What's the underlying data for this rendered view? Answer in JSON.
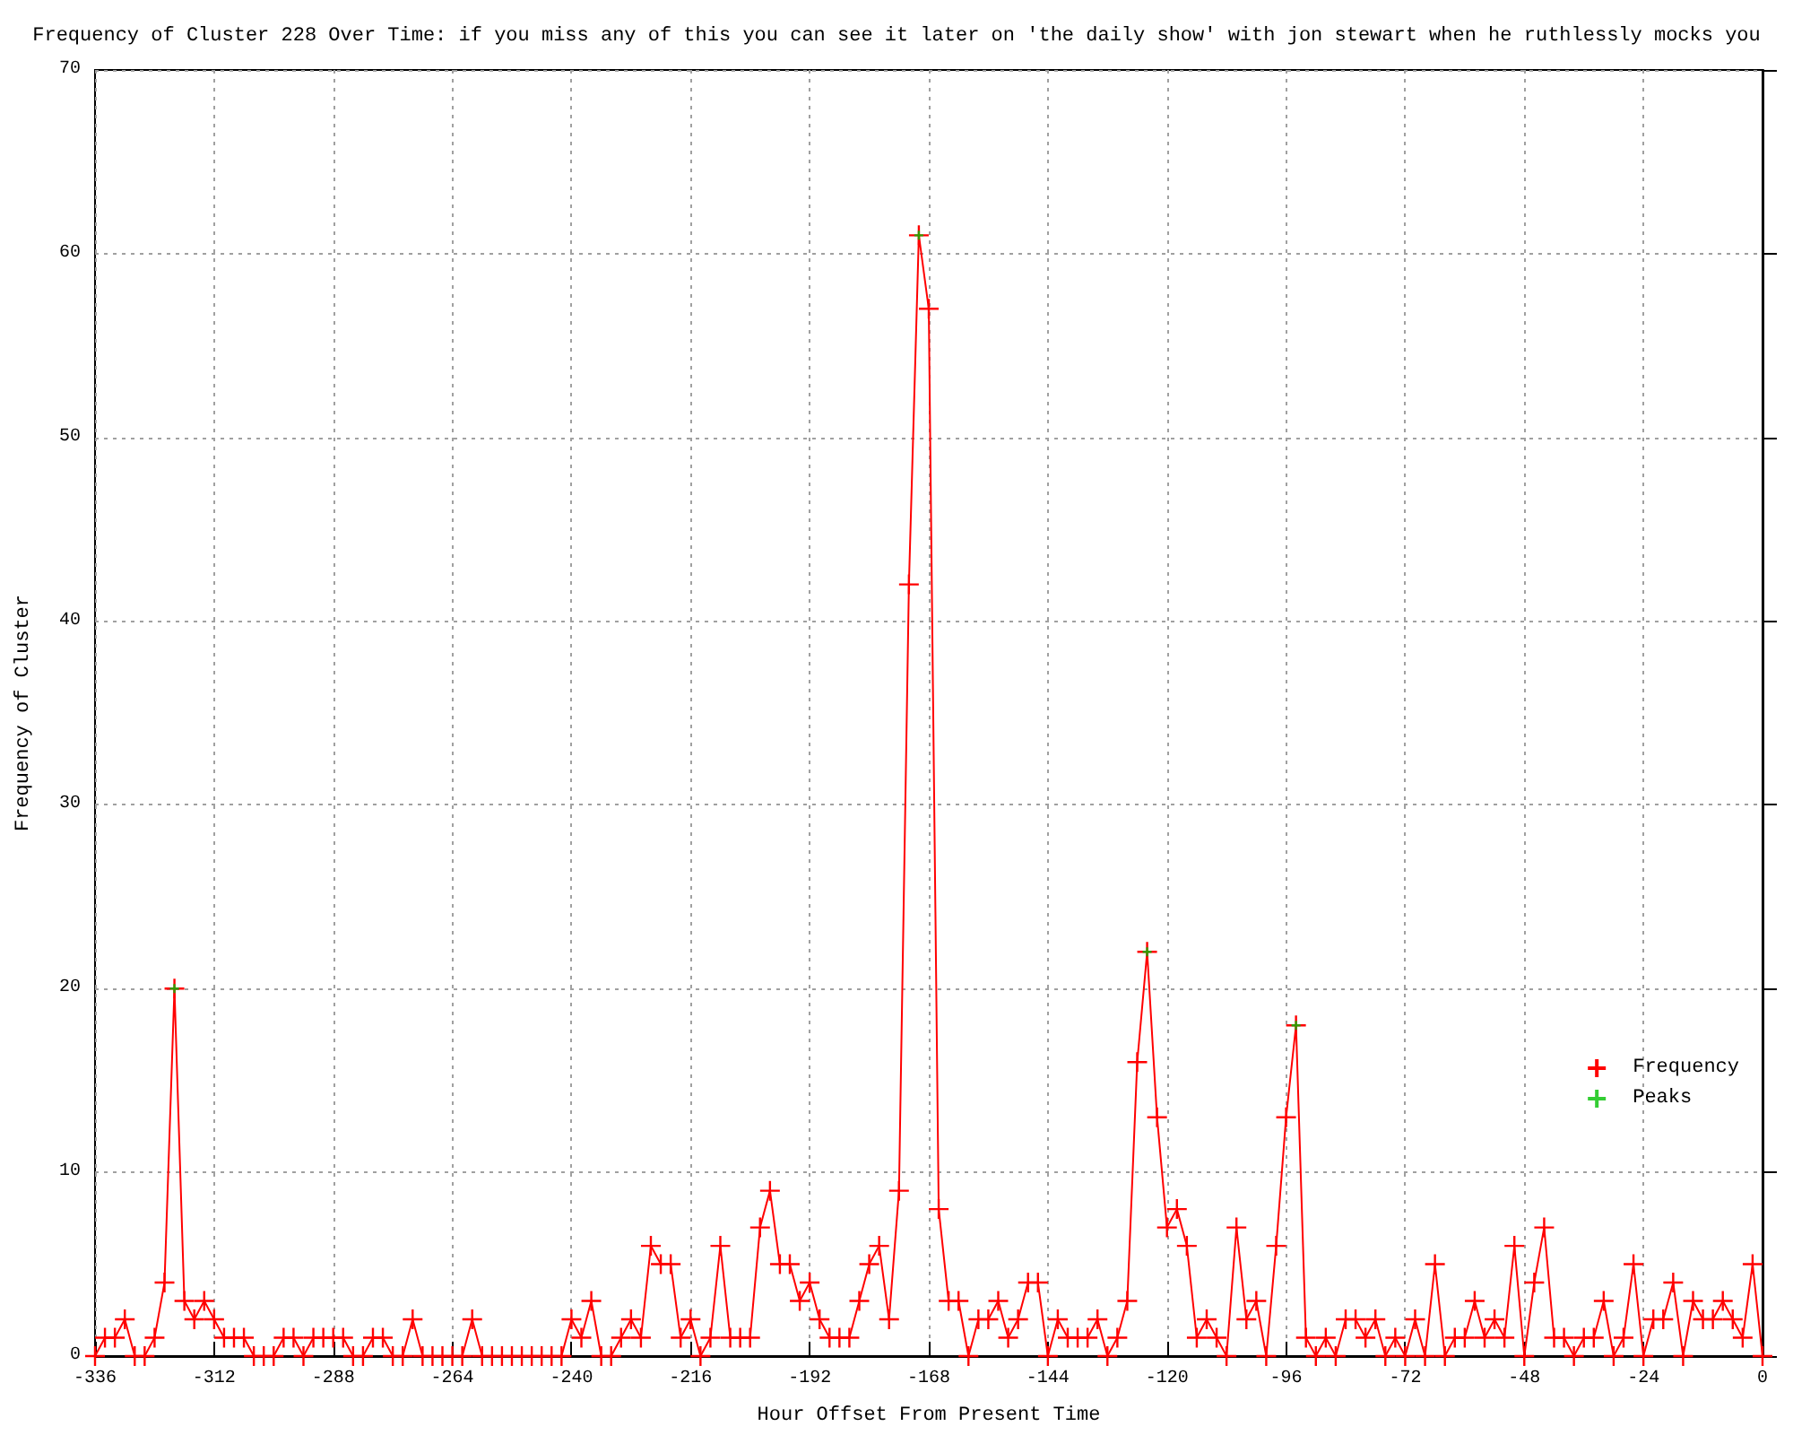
{
  "chart_data": {
    "type": "line",
    "title": "Frequency of Cluster 228 Over Time: if you miss any of this you can see it later on 'the daily show' with jon stewart when he ruthlessly mocks you",
    "xlabel": "Hour Offset From Present Time",
    "ylabel": "Frequency of Cluster",
    "x": [
      -336,
      -334,
      -332,
      -330,
      -328,
      -326,
      -324,
      -322,
      -320,
      -318,
      -316,
      -314,
      -312,
      -310,
      -308,
      -306,
      -304,
      -302,
      -300,
      -298,
      -296,
      -294,
      -292,
      -290,
      -288,
      -286,
      -284,
      -282,
      -280,
      -278,
      -276,
      -274,
      -272,
      -270,
      -268,
      -266,
      -264,
      -262,
      -260,
      -258,
      -256,
      -254,
      -252,
      -250,
      -248,
      -246,
      -244,
      -242,
      -240,
      -238,
      -236,
      -234,
      -232,
      -230,
      -228,
      -226,
      -224,
      -222,
      -220,
      -218,
      -216,
      -214,
      -212,
      -210,
      -208,
      -206,
      -204,
      -202,
      -200,
      -198,
      -196,
      -194,
      -192,
      -190,
      -188,
      -186,
      -184,
      -182,
      -180,
      -178,
      -176,
      -174,
      -172,
      -170,
      -168,
      -166,
      -164,
      -162,
      -160,
      -158,
      -156,
      -154,
      -152,
      -150,
      -148,
      -146,
      -144,
      -142,
      -140,
      -138,
      -136,
      -134,
      -132,
      -130,
      -128,
      -126,
      -124,
      -122,
      -120,
      -118,
      -116,
      -114,
      -112,
      -110,
      -108,
      -106,
      -104,
      -102,
      -100,
      -98,
      -96,
      -94,
      -92,
      -90,
      -88,
      -86,
      -84,
      -82,
      -80,
      -78,
      -76,
      -74,
      -72,
      -70,
      -68,
      -66,
      -64,
      -62,
      -60,
      -58,
      -56,
      -54,
      -52,
      -50,
      -48,
      -46,
      -44,
      -42,
      -40,
      -38,
      -36,
      -34,
      -32,
      -30,
      -28,
      -26,
      -24,
      -22,
      -20,
      -18,
      -16,
      -14,
      -12,
      -10,
      -8,
      -6,
      -4,
      -2,
      0
    ],
    "series": [
      {
        "name": "Frequency",
        "color": "#ff0000",
        "marker": "cross",
        "values": [
          0,
          1,
          1,
          2,
          0,
          0,
          1,
          4,
          20,
          3,
          2,
          3,
          2,
          1,
          1,
          1,
          0,
          0,
          0,
          1,
          1,
          0,
          1,
          1,
          1,
          1,
          0,
          0,
          1,
          1,
          0,
          0,
          2,
          0,
          0,
          0,
          0,
          0,
          2,
          0,
          0,
          0,
          0,
          0,
          0,
          0,
          0,
          0,
          2,
          1,
          3,
          0,
          0,
          1,
          2,
          1,
          6,
          5,
          5,
          1,
          2,
          0,
          1,
          6,
          1,
          1,
          1,
          7,
          9,
          5,
          5,
          3,
          4,
          2,
          1,
          1,
          1,
          3,
          5,
          6,
          2,
          9,
          42,
          61,
          57,
          8,
          3,
          3,
          0,
          2,
          2,
          3,
          1,
          2,
          4,
          4,
          0,
          2,
          1,
          1,
          1,
          2,
          0,
          1,
          3,
          16,
          22,
          13,
          7,
          8,
          6,
          1,
          2,
          1,
          0,
          7,
          2,
          3,
          0,
          6,
          13,
          18,
          1,
          0,
          1,
          0,
          2,
          2,
          1,
          2,
          0,
          1,
          0,
          2,
          0,
          5,
          0,
          1,
          1,
          3,
          1,
          2,
          1,
          6,
          0,
          4,
          7,
          1,
          1,
          0,
          1,
          1,
          3,
          0,
          1,
          5,
          0,
          2,
          2,
          4,
          0,
          3,
          2,
          2,
          3,
          2,
          1,
          5,
          0
        ]
      },
      {
        "name": "Peaks",
        "type": "scatter",
        "color": "#00c000",
        "marker": "cross",
        "x": [
          -320,
          -170,
          -124,
          -94
        ],
        "values": [
          20,
          61,
          22,
          18
        ]
      }
    ],
    "xlim": [
      -336,
      0
    ],
    "xticks": [
      -336,
      -312,
      -288,
      -264,
      -240,
      -216,
      -192,
      -168,
      -144,
      -120,
      -96,
      -72,
      -48,
      -24,
      0
    ],
    "ylim": [
      0,
      70
    ],
    "yticks": [
      0,
      10,
      20,
      30,
      40,
      50,
      60,
      70
    ],
    "grid": true,
    "line_style": "solid",
    "legend": "bottom right"
  }
}
